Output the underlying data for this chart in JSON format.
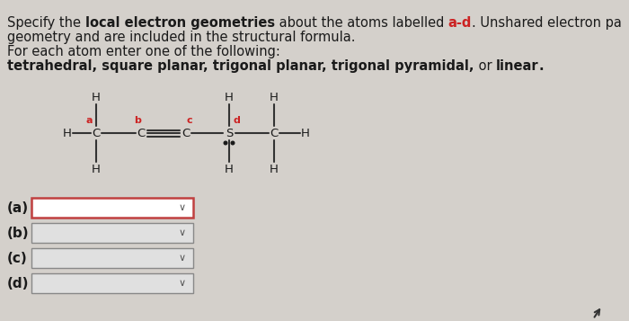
{
  "bg_color": "#d4d0cb",
  "white": "#ffffff",
  "red": "#cc2222",
  "black": "#1a1a1a",
  "dark_gray": "#555555",
  "dropdown_border_a": "#c0404040",
  "dropdown_border_bcd": "#888888",
  "text_lines": [
    {
      "text": "Specify the ",
      "bold": false,
      "color": "#1a1a1a"
    },
    {
      "text": "local electron geometries",
      "bold": true,
      "color": "#1a1a1a"
    },
    {
      "text": " about the atoms labelled ",
      "bold": false,
      "color": "#1a1a1a"
    },
    {
      "text": "a-d",
      "bold": true,
      "color": "#cc2222"
    },
    {
      "text": ". Unshared electron pa",
      "bold": false,
      "color": "#1a1a1a"
    }
  ],
  "line2": "geometry and are included in the structural formula.",
  "line3": "For each atom enter one of the following:",
  "line4_bold": "tetrahedral, square planar, trigonal planar, trigonal pyramidal,",
  "line4_or": " or ",
  "line4_linear": "linear",
  "line4_dot": ".",
  "dropdowns": [
    "(a)",
    "(b)",
    "(c)",
    "(d)"
  ],
  "font_size_text": 10.5,
  "font_size_atom": 9.5,
  "font_size_label": 8.0,
  "font_size_dropdown": 11.0
}
